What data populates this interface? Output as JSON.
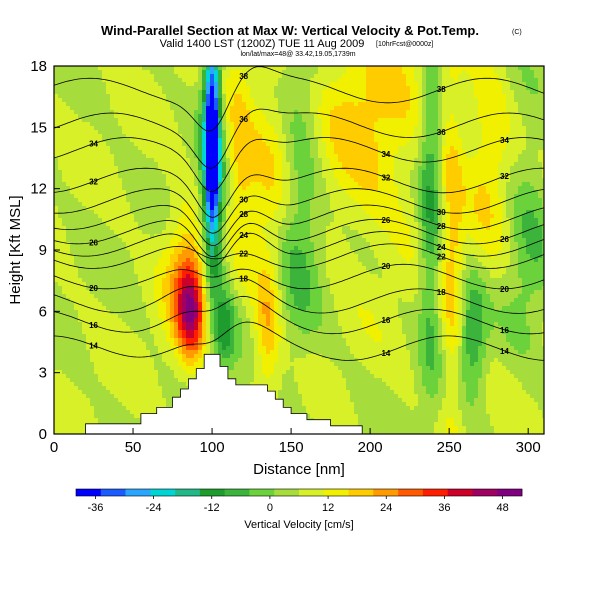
{
  "header": {
    "title": "Wind-Parallel Section at Max W: Vertical Velocity & Pot.Temp.",
    "copyright": "(C)",
    "valid_line": "Valid 1400 LST (1200Z) TUE 11 Aug 2009",
    "forecast_note": "[10hrFcst@0000z]",
    "location_line": "lon/lat/max=48@ 33.42,19.05,1739m"
  },
  "chart_data": {
    "type": "heatmap",
    "xlabel": "Distance [nm]",
    "ylabel": "Height [Kft MSL]",
    "xlim": [
      0,
      310
    ],
    "ylim": [
      0,
      18
    ],
    "x_ticks": [
      "0",
      "50",
      "100",
      "150",
      "200",
      "250",
      "300"
    ],
    "y_ticks": [
      "0",
      "3",
      "6",
      "9",
      "12",
      "15",
      "18"
    ],
    "colorbar": {
      "label": "Vertical Velocity [cm/s]",
      "range": [
        -40,
        52
      ],
      "tick_labels": [
        "-36",
        "-24",
        "-12",
        "0",
        "12",
        "24",
        "36",
        "48"
      ],
      "colors": [
        "#0000ff",
        "#1a5cff",
        "#2aa6ff",
        "#00d4d4",
        "#22b888",
        "#1e9c2e",
        "#3cb43c",
        "#6cd23c",
        "#a6dc3c",
        "#d8f028",
        "#f0f000",
        "#ffcc00",
        "#ff9a00",
        "#ff5a00",
        "#ff1e00",
        "#cc0028",
        "#a00060",
        "#800080"
      ]
    },
    "terrain": [
      [
        0,
        0
      ],
      [
        20,
        0
      ],
      [
        20,
        0.5
      ],
      [
        55,
        0.5
      ],
      [
        55,
        1
      ],
      [
        65,
        1
      ],
      [
        65,
        1.3
      ],
      [
        75,
        1.3
      ],
      [
        75,
        1.8
      ],
      [
        80,
        1.8
      ],
      [
        80,
        2.2
      ],
      [
        85,
        2.2
      ],
      [
        85,
        2.7
      ],
      [
        90,
        2.7
      ],
      [
        90,
        3.2
      ],
      [
        95,
        3.2
      ],
      [
        95,
        3.9
      ],
      [
        105,
        3.9
      ],
      [
        105,
        3.3
      ],
      [
        110,
        3.3
      ],
      [
        110,
        2.7
      ],
      [
        115,
        2.7
      ],
      [
        115,
        2.4
      ],
      [
        135,
        2.4
      ],
      [
        135,
        2.1
      ],
      [
        140,
        2.1
      ],
      [
        140,
        1.7
      ],
      [
        145,
        1.7
      ],
      [
        145,
        1.3
      ],
      [
        150,
        1.3
      ],
      [
        150,
        1
      ],
      [
        160,
        1
      ],
      [
        160,
        0.7
      ],
      [
        175,
        0.7
      ],
      [
        175,
        0.4
      ],
      [
        195,
        0.4
      ],
      [
        195,
        0
      ],
      [
        310,
        0
      ]
    ],
    "theta_contours": [
      {
        "label": "14",
        "h": 4.2
      },
      {
        "label": "16",
        "h": 5.5
      },
      {
        "label": "18",
        "h": 6.5
      },
      {
        "label": "20",
        "h": 7.7
      },
      {
        "label": "22",
        "h": 8.7
      },
      {
        "label": "24",
        "h": 9.3
      },
      {
        "label": "26",
        "h": 9.9
      },
      {
        "label": "28",
        "h": 10.6
      },
      {
        "label": "30",
        "h": 11.4
      },
      {
        "label": "32",
        "h": 12.4
      },
      {
        "label": "34",
        "h": 13.9
      },
      {
        "label": "36",
        "h": 15.1
      },
      {
        "label": "38",
        "h": 16.8
      }
    ]
  }
}
